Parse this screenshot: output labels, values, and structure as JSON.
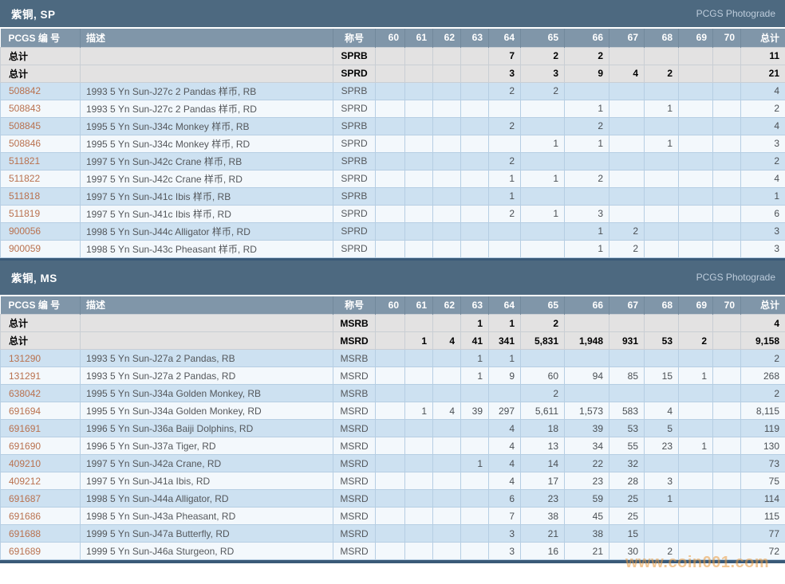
{
  "watermark": "www.coin001.com",
  "colors": {
    "section_band": "#4d6980",
    "column_header_band": "#8096a9",
    "row_blue": "#cde1f1",
    "row_white": "#f3f8fc",
    "total_row_bg": "#e3e2e2",
    "pcgs_link": "#b9714e",
    "bottom_bar": "#3a5a78",
    "watermark_orange": "#e99b40"
  },
  "sections": [
    {
      "id": "sp",
      "title": "紫铜, SP",
      "photograde": "PCGS Photograde",
      "columns": {
        "pcgs": "PCGS 编 号",
        "desc": "描述",
        "designation": "称号",
        "total": "总计"
      },
      "grade_columns": [
        "60",
        "61",
        "62",
        "63",
        "64",
        "65",
        "66",
        "67",
        "68",
        "69",
        "70"
      ],
      "total_label": "总计",
      "totals": [
        {
          "label": "总计",
          "designation": "SPRB",
          "values": [
            "",
            "",
            "",
            "",
            "7",
            "2",
            "2",
            "",
            "",
            "",
            ""
          ],
          "total": "11"
        },
        {
          "label": "总计",
          "designation": "SPRD",
          "values": [
            "",
            "",
            "",
            "",
            "3",
            "3",
            "9",
            "4",
            "2",
            "",
            ""
          ],
          "total": "21"
        }
      ],
      "rows": [
        {
          "pcgs": "508842",
          "desc": "1993 5 Yn Sun-J27c 2 Pandas 样币, RB",
          "designation": "SPRB",
          "values": [
            "",
            "",
            "",
            "",
            "2",
            "2",
            "",
            "",
            "",
            "",
            ""
          ],
          "total": "4"
        },
        {
          "pcgs": "508843",
          "desc": "1993 5 Yn Sun-J27c 2 Pandas 样币, RD",
          "designation": "SPRD",
          "values": [
            "",
            "",
            "",
            "",
            "",
            "",
            "1",
            "",
            "1",
            "",
            ""
          ],
          "total": "2"
        },
        {
          "pcgs": "508845",
          "desc": "1995 5 Yn Sun-J34c Monkey 样币, RB",
          "designation": "SPRB",
          "values": [
            "",
            "",
            "",
            "",
            "2",
            "",
            "2",
            "",
            "",
            "",
            ""
          ],
          "total": "4"
        },
        {
          "pcgs": "508846",
          "desc": "1995 5 Yn Sun-J34c Monkey 样币, RD",
          "designation": "SPRD",
          "values": [
            "",
            "",
            "",
            "",
            "",
            "1",
            "1",
            "",
            "1",
            "",
            ""
          ],
          "total": "3"
        },
        {
          "pcgs": "511821",
          "desc": "1997 5 Yn Sun-J42c Crane 样币, RB",
          "designation": "SPRB",
          "values": [
            "",
            "",
            "",
            "",
            "2",
            "",
            "",
            "",
            "",
            "",
            ""
          ],
          "total": "2"
        },
        {
          "pcgs": "511822",
          "desc": "1997 5 Yn Sun-J42c Crane 样币, RD",
          "designation": "SPRD",
          "values": [
            "",
            "",
            "",
            "",
            "1",
            "1",
            "2",
            "",
            "",
            "",
            ""
          ],
          "total": "4"
        },
        {
          "pcgs": "511818",
          "desc": "1997 5 Yn Sun-J41c Ibis 样币, RB",
          "designation": "SPRB",
          "values": [
            "",
            "",
            "",
            "",
            "1",
            "",
            "",
            "",
            "",
            "",
            ""
          ],
          "total": "1"
        },
        {
          "pcgs": "511819",
          "desc": "1997 5 Yn Sun-J41c Ibis 样币, RD",
          "designation": "SPRD",
          "values": [
            "",
            "",
            "",
            "",
            "2",
            "1",
            "3",
            "",
            "",
            "",
            ""
          ],
          "total": "6"
        },
        {
          "pcgs": "900056",
          "desc": "1998 5 Yn Sun-J44c Alligator 样币, RD",
          "designation": "SPRD",
          "values": [
            "",
            "",
            "",
            "",
            "",
            "",
            "1",
            "2",
            "",
            "",
            ""
          ],
          "total": "3"
        },
        {
          "pcgs": "900059",
          "desc": "1998 5 Yn Sun-J43c Pheasant 样币, RD",
          "designation": "SPRD",
          "values": [
            "",
            "",
            "",
            "",
            "",
            "",
            "1",
            "2",
            "",
            "",
            ""
          ],
          "total": "3"
        }
      ]
    },
    {
      "id": "ms",
      "title": "紫铜, MS",
      "photograde": "PCGS Photograde",
      "columns": {
        "pcgs": "PCGS 编 号",
        "desc": "描述",
        "designation": "称号",
        "total": "总计"
      },
      "grade_columns": [
        "60",
        "61",
        "62",
        "63",
        "64",
        "65",
        "66",
        "67",
        "68",
        "69",
        "70"
      ],
      "total_label": "总计",
      "totals": [
        {
          "label": "总计",
          "designation": "MSRB",
          "values": [
            "",
            "",
            "",
            "1",
            "1",
            "2",
            "",
            "",
            "",
            "",
            ""
          ],
          "total": "4"
        },
        {
          "label": "总计",
          "designation": "MSRD",
          "values": [
            "",
            "1",
            "4",
            "41",
            "341",
            "5,831",
            "1,948",
            "931",
            "53",
            "2",
            ""
          ],
          "total": "9,158"
        }
      ],
      "rows": [
        {
          "pcgs": "131290",
          "desc": "1993 5 Yn Sun-J27a 2 Pandas, RB",
          "designation": "MSRB",
          "values": [
            "",
            "",
            "",
            "1",
            "1",
            "",
            "",
            "",
            "",
            "",
            ""
          ],
          "total": "2"
        },
        {
          "pcgs": "131291",
          "desc": "1993 5 Yn Sun-J27a 2 Pandas, RD",
          "designation": "MSRD",
          "values": [
            "",
            "",
            "",
            "1",
            "9",
            "60",
            "94",
            "85",
            "15",
            "1",
            ""
          ],
          "total": "268"
        },
        {
          "pcgs": "638042",
          "desc": "1995 5 Yn Sun-J34a Golden Monkey, RB",
          "designation": "MSRB",
          "values": [
            "",
            "",
            "",
            "",
            "",
            "2",
            "",
            "",
            "",
            "",
            ""
          ],
          "total": "2"
        },
        {
          "pcgs": "691694",
          "desc": "1995 5 Yn Sun-J34a Golden Monkey, RD",
          "designation": "MSRD",
          "values": [
            "",
            "1",
            "4",
            "39",
            "297",
            "5,611",
            "1,573",
            "583",
            "4",
            "",
            ""
          ],
          "total": "8,115"
        },
        {
          "pcgs": "691691",
          "desc": "1996 5 Yn Sun-J36a Baiji Dolphins, RD",
          "designation": "MSRD",
          "values": [
            "",
            "",
            "",
            "",
            "4",
            "18",
            "39",
            "53",
            "5",
            "",
            ""
          ],
          "total": "119"
        },
        {
          "pcgs": "691690",
          "desc": "1996 5 Yn Sun-J37a Tiger, RD",
          "designation": "MSRD",
          "values": [
            "",
            "",
            "",
            "",
            "4",
            "13",
            "34",
            "55",
            "23",
            "1",
            ""
          ],
          "total": "130"
        },
        {
          "pcgs": "409210",
          "desc": "1997 5 Yn Sun-J42a Crane, RD",
          "designation": "MSRD",
          "values": [
            "",
            "",
            "",
            "1",
            "4",
            "14",
            "22",
            "32",
            "",
            "",
            ""
          ],
          "total": "73"
        },
        {
          "pcgs": "409212",
          "desc": "1997 5 Yn Sun-J41a Ibis, RD",
          "designation": "MSRD",
          "values": [
            "",
            "",
            "",
            "",
            "4",
            "17",
            "23",
            "28",
            "3",
            "",
            ""
          ],
          "total": "75"
        },
        {
          "pcgs": "691687",
          "desc": "1998 5 Yn Sun-J44a Alligator, RD",
          "designation": "MSRD",
          "values": [
            "",
            "",
            "",
            "",
            "6",
            "23",
            "59",
            "25",
            "1",
            "",
            ""
          ],
          "total": "114"
        },
        {
          "pcgs": "691686",
          "desc": "1998 5 Yn Sun-J43a Pheasant, RD",
          "designation": "MSRD",
          "values": [
            "",
            "",
            "",
            "",
            "7",
            "38",
            "45",
            "25",
            "",
            "",
            ""
          ],
          "total": "115"
        },
        {
          "pcgs": "691688",
          "desc": "1999 5 Yn Sun-J47a Butterfly, RD",
          "designation": "MSRD",
          "values": [
            "",
            "",
            "",
            "",
            "3",
            "21",
            "38",
            "15",
            "",
            "",
            ""
          ],
          "total": "77"
        },
        {
          "pcgs": "691689",
          "desc": "1999 5 Yn Sun-J46a Sturgeon, RD",
          "designation": "MSRD",
          "values": [
            "",
            "",
            "",
            "",
            "3",
            "16",
            "21",
            "30",
            "2",
            "",
            ""
          ],
          "total": "72"
        }
      ]
    }
  ]
}
